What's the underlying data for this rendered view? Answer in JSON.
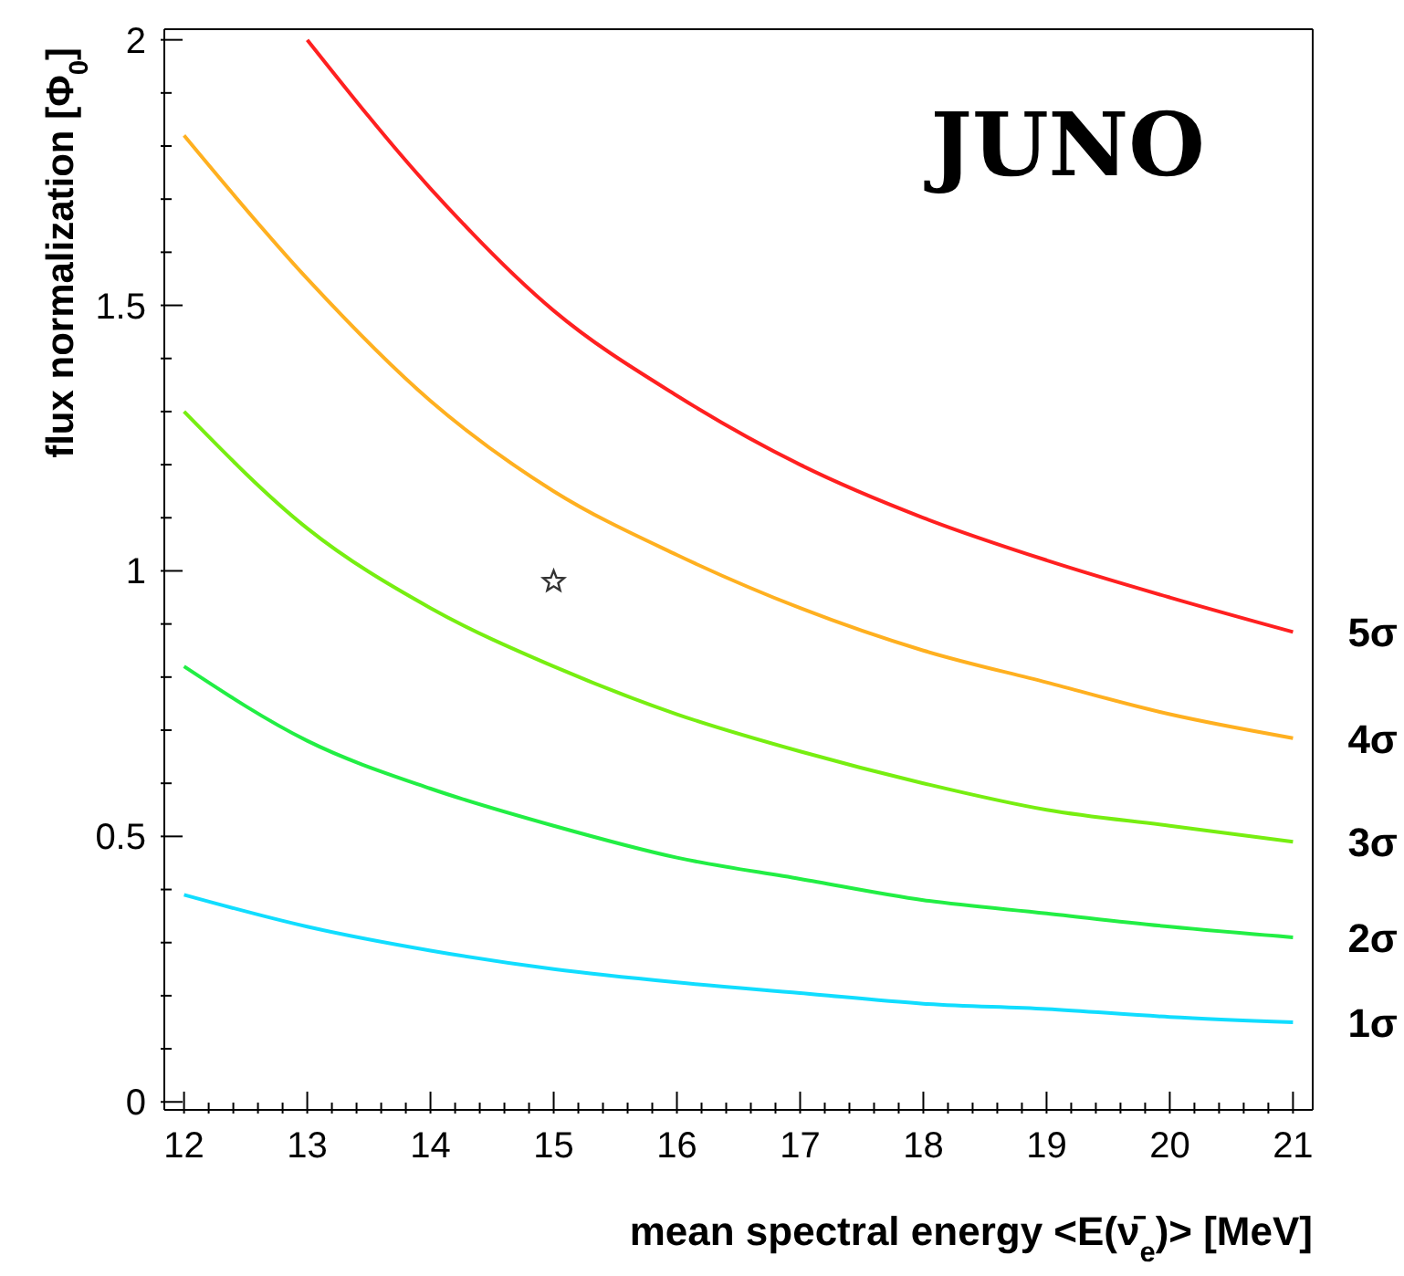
{
  "chart_data": {
    "type": "line",
    "xlabel": "mean spectral energy <E(ν̄$_{e}$)> [MeV]",
    "ylabel": "flux normalization [Φ$_{0}$]",
    "annotations": [
      "JUNO"
    ],
    "xlim": [
      11.84,
      21.16
    ],
    "ylim": [
      -0.015,
      2.02
    ],
    "xticks": [
      12,
      {
        "value": 12.2,
        "label": null
      },
      {
        "value": 12.4,
        "label": null
      },
      {
        "value": 12.6,
        "label": null
      },
      {
        "value": 12.8,
        "label": null
      },
      13,
      {
        "value": 13.2,
        "label": null
      },
      {
        "value": 13.4,
        "label": null
      },
      {
        "value": 13.6,
        "label": null
      },
      {
        "value": 13.8,
        "label": null
      },
      14,
      {
        "value": 14.2,
        "label": null
      },
      {
        "value": 14.4,
        "label": null
      },
      {
        "value": 14.6,
        "label": null
      },
      {
        "value": 14.8,
        "label": null
      },
      15,
      {
        "value": 15.2,
        "label": null
      },
      {
        "value": 15.4,
        "label": null
      },
      {
        "value": 15.6,
        "label": null
      },
      {
        "value": 15.8,
        "label": null
      },
      16,
      {
        "value": 16.2,
        "label": null
      },
      {
        "value": 16.4,
        "label": null
      },
      {
        "value": 16.6,
        "label": null
      },
      {
        "value": 16.8,
        "label": null
      },
      17,
      {
        "value": 17.2,
        "label": null
      },
      {
        "value": 17.4,
        "label": null
      },
      {
        "value": 17.6,
        "label": null
      },
      {
        "value": 17.8,
        "label": null
      },
      18,
      {
        "value": 18.2,
        "label": null
      },
      {
        "value": 18.4,
        "label": null
      },
      {
        "value": 18.6,
        "label": null
      },
      {
        "value": 18.8,
        "label": null
      },
      19,
      {
        "value": 19.2,
        "label": null
      },
      {
        "value": 19.4,
        "label": null
      },
      {
        "value": 19.6,
        "label": null
      },
      {
        "value": 19.8,
        "label": null
      },
      20,
      {
        "value": 20.2,
        "label": null
      },
      {
        "value": 20.4,
        "label": null
      },
      {
        "value": 20.6,
        "label": null
      },
      {
        "value": 20.8,
        "label": null
      },
      21
    ],
    "yticks": [
      0,
      {
        "value": 0.1,
        "label": null
      },
      {
        "value": 0.2,
        "label": null
      },
      {
        "value": 0.3,
        "label": null
      },
      {
        "value": 0.4,
        "label": null
      },
      0.5,
      {
        "value": 0.6,
        "label": null
      },
      {
        "value": 0.7,
        "label": null
      },
      {
        "value": 0.8,
        "label": null
      },
      {
        "value": 0.9,
        "label": null
      },
      1,
      {
        "value": 1.1,
        "label": null
      },
      {
        "value": 1.2,
        "label": null
      },
      {
        "value": 1.3,
        "label": null
      },
      {
        "value": 1.4,
        "label": null
      },
      1.5,
      {
        "value": 1.6,
        "label": null
      },
      {
        "value": 1.7,
        "label": null
      },
      {
        "value": 1.8,
        "label": null
      },
      {
        "value": 1.9,
        "label": null
      },
      2
    ],
    "marker": "none",
    "line_style": "solid",
    "grid": false,
    "legend": false,
    "series": [
      {
        "name": "5σ",
        "color": "#ff2020",
        "x": [
          13,
          14,
          15,
          16,
          17,
          18,
          19,
          20,
          21
        ],
        "values": [
          2.0,
          1.72,
          1.49,
          1.33,
          1.2,
          1.1,
          1.02,
          0.95,
          0.885
        ]
      },
      {
        "name": "4σ",
        "color": "#ffb020",
        "x": [
          12,
          13,
          14,
          15,
          16,
          17,
          18,
          19,
          20,
          21
        ],
        "values": [
          1.82,
          1.55,
          1.32,
          1.15,
          1.03,
          0.93,
          0.85,
          0.79,
          0.73,
          0.685
        ]
      },
      {
        "name": "3σ",
        "color": "#77ee11",
        "x": [
          12,
          13,
          14,
          15,
          16,
          17,
          18,
          19,
          20,
          21
        ],
        "values": [
          1.3,
          1.08,
          0.93,
          0.82,
          0.73,
          0.66,
          0.6,
          0.55,
          0.52,
          0.49
        ]
      },
      {
        "name": "2σ",
        "color": "#22ee44",
        "x": [
          12,
          13,
          14,
          15,
          16,
          17,
          18,
          19,
          20,
          21
        ],
        "values": [
          0.82,
          0.68,
          0.59,
          0.52,
          0.46,
          0.42,
          0.38,
          0.355,
          0.33,
          0.31
        ]
      },
      {
        "name": "1σ",
        "color": "#11ddff",
        "x": [
          12,
          13,
          14,
          15,
          16,
          17,
          18,
          19,
          20,
          21
        ],
        "values": [
          0.39,
          0.33,
          0.285,
          0.25,
          0.225,
          0.205,
          0.185,
          0.175,
          0.16,
          0.15
        ]
      },
      {
        "type": "scatter",
        "marker": "star",
        "color": "#333333",
        "x": [
          15
        ],
        "values": [
          0.98
        ]
      }
    ]
  }
}
